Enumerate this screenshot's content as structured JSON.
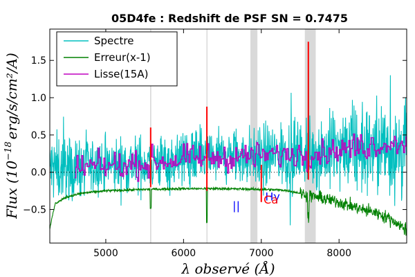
{
  "chart_data": {
    "type": "line",
    "title": "05D4fe : Redshift de PSF SN = 0.7475",
    "xlabel": "λ observé (Å)",
    "ylabel_prefix": "Flux (10",
    "ylabel_exp": "−18",
    "ylabel_unit": "erg/s/cm²/A)",
    "xlim": [
      4280,
      8870
    ],
    "ylim": [
      -0.95,
      1.92
    ],
    "xticks": [
      5000,
      6000,
      7000,
      8000
    ],
    "xtick_labels": [
      "5000",
      "6000",
      "7000",
      "8000"
    ],
    "yticks": [
      -0.5,
      0.0,
      0.5,
      1.0,
      1.5
    ],
    "ytick_labels": [
      "−0.5",
      "0.0",
      "0.5",
      "1.0",
      "1.5"
    ],
    "legend_position": "top-left",
    "series": [
      {
        "name": "Spectre",
        "color": "#00bfbf"
      },
      {
        "name": "Erreur(x-1)",
        "color": "#008000"
      },
      {
        "name": "Lisse(15A)",
        "color": "#bf00bf"
      }
    ],
    "spectre_profile": {
      "x": [
        4280,
        4500,
        5000,
        5500,
        6000,
        6500,
        7000,
        7500,
        8000,
        8500,
        8870
      ],
      "mean": [
        0.05,
        0.05,
        0.08,
        0.12,
        0.18,
        0.2,
        0.22,
        0.25,
        0.28,
        0.32,
        0.3
      ],
      "noise": [
        0.4,
        0.32,
        0.3,
        0.3,
        0.3,
        0.3,
        0.32,
        0.38,
        0.42,
        0.5,
        0.65
      ]
    },
    "erreur_profile": {
      "x": [
        4280,
        4350,
        4500,
        4700,
        5000,
        5500,
        6000,
        6500,
        7000,
        7300,
        7500,
        7700,
        8000,
        8300,
        8500,
        8700,
        8870
      ],
      "y": [
        -0.75,
        -0.42,
        -0.33,
        -0.28,
        -0.25,
        -0.23,
        -0.22,
        -0.22,
        -0.23,
        -0.24,
        -0.28,
        -0.33,
        -0.4,
        -0.5,
        -0.55,
        -0.65,
        -0.78
      ]
    },
    "lisse_profile": {
      "x": [
        4600,
        5000,
        5500,
        6000,
        6500,
        7000,
        7500,
        8000,
        8500,
        8870
      ],
      "y": [
        0.05,
        0.08,
        0.12,
        0.18,
        0.2,
        0.22,
        0.25,
        0.3,
        0.38,
        0.4
      ]
    },
    "shaded_bands": [
      {
        "x0": 5570,
        "x1": 5585
      },
      {
        "x0": 6295,
        "x1": 6305
      },
      {
        "x0": 6860,
        "x1": 6950
      },
      {
        "x0": 7560,
        "x1": 7700
      }
    ],
    "red_lines": [
      {
        "x": 5577,
        "ymin": -0.2,
        "ymax": 0.6
      },
      {
        "x": 6300,
        "ymin": -0.25,
        "ymax": 0.88
      },
      {
        "x": 7000,
        "ymin": -0.4,
        "ymax": 0.1
      },
      {
        "x": 7605,
        "ymin": -0.1,
        "ymax": 1.75
      }
    ],
    "annotations": [
      {
        "text": "||",
        "x": 6630,
        "y": -0.5,
        "color": "#0000ff"
      },
      {
        "text": "Hγ",
        "x": 7050,
        "y": -0.38,
        "color": "#0000ff"
      },
      {
        "text": "Ca",
        "x": 7030,
        "y": -0.42,
        "color": "#ff0000"
      }
    ]
  }
}
